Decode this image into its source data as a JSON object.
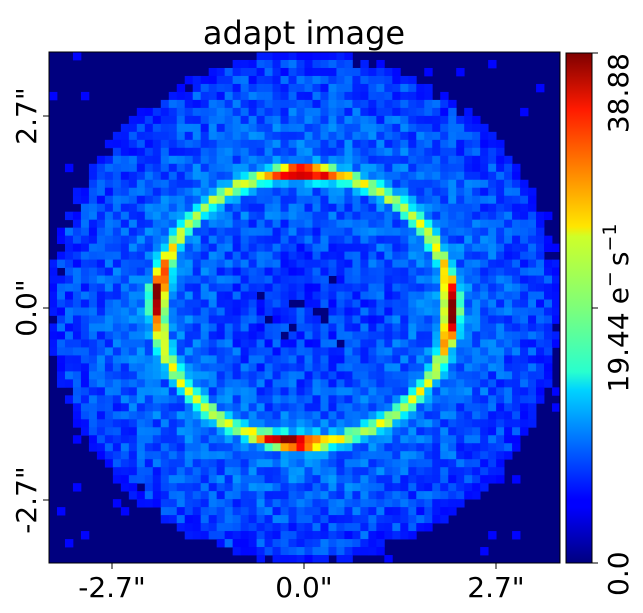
{
  "chart_data": {
    "type": "heatmap",
    "title": "adapt image",
    "x_tick_labels": [
      "-2.7\"",
      "0.0\"",
      "2.7\""
    ],
    "y_tick_labels": [
      "2.7\"",
      "0.0\"",
      "-2.7\""
    ],
    "x_ticks": [
      -2.7,
      0.0,
      2.7
    ],
    "y_ticks": [
      2.7,
      0.0,
      -2.7
    ],
    "xlim": [
      -3.3,
      3.3
    ],
    "ylim": [
      -3.3,
      3.3
    ],
    "colorbar": {
      "label_value": "19.44",
      "unit_label": "e",
      "unit_sup1": "−",
      "unit_s": "s",
      "unit_sup2": "−1",
      "tick_labels": [
        "0.0",
        "38.88"
      ],
      "range": [
        0.0,
        38.88
      ],
      "colormap": "jet"
    },
    "features": {
      "ring": {
        "center": [
          0.0,
          0.0
        ],
        "radius_x": 1.9,
        "radius_y": 1.75
      },
      "bright_knots": [
        {
          "x": 0.0,
          "y": 1.69,
          "value": 38.88
        },
        {
          "x": -1.9,
          "y": 0.17,
          "value": 36.0
        },
        {
          "x": 1.9,
          "y": -0.03,
          "value": 36.0
        },
        {
          "x": -0.15,
          "y": -1.7,
          "value": 38.88
        }
      ],
      "outer_halo_radius": 3.3
    }
  }
}
